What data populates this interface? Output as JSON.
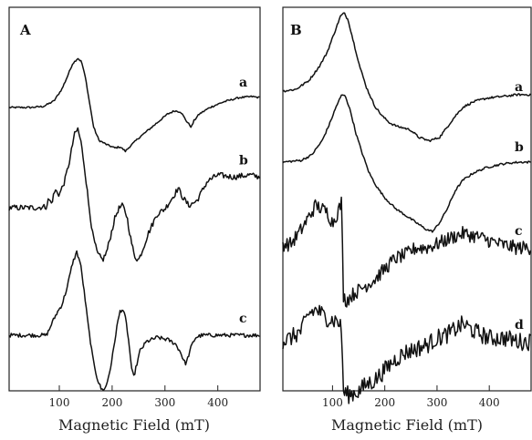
{
  "chart_data": [
    {
      "type": "line",
      "panel_label": "A",
      "xlabel": "Magnetic Field (mT)",
      "ylabel": "",
      "xlim": [
        5,
        480
      ],
      "xticks": [
        100,
        200,
        300,
        400
      ],
      "grid": false,
      "series": [
        {
          "name": "a",
          "label": "a",
          "noise": 0.4,
          "points": [
            [
              5,
              0
            ],
            [
              45,
              0
            ],
            [
              70,
              0.5
            ],
            [
              90,
              3
            ],
            [
              105,
              8.5
            ],
            [
              115,
              14
            ],
            [
              125,
              20
            ],
            [
              135,
              22.5
            ],
            [
              142,
              21
            ],
            [
              150,
              13
            ],
            [
              158,
              1
            ],
            [
              165,
              -9
            ],
            [
              175,
              -15
            ],
            [
              190,
              -17
            ],
            [
              205,
              -18.5
            ],
            [
              215,
              -18
            ],
            [
              225,
              -20
            ],
            [
              235,
              -17.5
            ],
            [
              250,
              -14
            ],
            [
              270,
              -10
            ],
            [
              290,
              -6
            ],
            [
              305,
              -3
            ],
            [
              318,
              -1.5
            ],
            [
              330,
              -2
            ],
            [
              340,
              -6
            ],
            [
              350,
              -9
            ],
            [
              355,
              -6
            ],
            [
              365,
              -3
            ],
            [
              385,
              0
            ],
            [
              410,
              2.5
            ],
            [
              440,
              4.5
            ],
            [
              465,
              5
            ],
            [
              480,
              4.5
            ]
          ]
        },
        {
          "name": "b",
          "label": "b",
          "noise": 1.3,
          "points": [
            [
              5,
              0
            ],
            [
              55,
              0
            ],
            [
              75,
              0.5
            ],
            [
              80,
              4
            ],
            [
              85,
              2
            ],
            [
              92,
              8
            ],
            [
              100,
              6
            ],
            [
              110,
              12
            ],
            [
              120,
              22
            ],
            [
              128,
              33
            ],
            [
              135,
              36
            ],
            [
              141,
              30
            ],
            [
              148,
              18
            ],
            [
              155,
              3
            ],
            [
              163,
              -12
            ],
            [
              172,
              -21
            ],
            [
              182,
              -24
            ],
            [
              190,
              -20
            ],
            [
              198,
              -12
            ],
            [
              205,
              -5
            ],
            [
              212,
              -0.5
            ],
            [
              220,
              1
            ],
            [
              228,
              -4
            ],
            [
              235,
              -14
            ],
            [
              242,
              -22
            ],
            [
              250,
              -24
            ],
            [
              258,
              -19
            ],
            [
              268,
              -12
            ],
            [
              285,
              -3
            ],
            [
              300,
              -0.5
            ],
            [
              318,
              6
            ],
            [
              325,
              9
            ],
            [
              333,
              5
            ],
            [
              345,
              1
            ],
            [
              360,
              3
            ],
            [
              380,
              12
            ],
            [
              400,
              15
            ],
            [
              430,
              14
            ],
            [
              460,
              15
            ],
            [
              480,
              14
            ]
          ]
        },
        {
          "name": "c",
          "label": "c",
          "noise": 0.9,
          "points": [
            [
              5,
              0
            ],
            [
              70,
              0
            ],
            [
              75,
              0
            ],
            [
              80,
              2
            ],
            [
              85,
              5
            ],
            [
              95,
              10
            ],
            [
              105,
              14
            ],
            [
              115,
              22
            ],
            [
              125,
              33
            ],
            [
              133,
              38
            ],
            [
              140,
              33
            ],
            [
              147,
              20
            ],
            [
              155,
              4
            ],
            [
              163,
              -10
            ],
            [
              172,
              -20
            ],
            [
              180,
              -25
            ],
            [
              188,
              -24
            ],
            [
              196,
              -16
            ],
            [
              203,
              -6
            ],
            [
              209,
              4
            ],
            [
              215,
              11
            ],
            [
              220,
              12
            ],
            [
              226,
              7
            ],
            [
              232,
              -4
            ],
            [
              237,
              -16
            ],
            [
              241,
              -19
            ],
            [
              246,
              -14
            ],
            [
              253,
              -7
            ],
            [
              265,
              -3
            ],
            [
              285,
              -1
            ],
            [
              305,
              -2
            ],
            [
              320,
              -4
            ],
            [
              330,
              -8
            ],
            [
              336,
              -12
            ],
            [
              340,
              -13
            ],
            [
              345,
              -9
            ],
            [
              350,
              -5
            ],
            [
              358,
              -1
            ],
            [
              370,
              0
            ],
            [
              420,
              0
            ],
            [
              480,
              0
            ]
          ]
        }
      ]
    },
    {
      "type": "line",
      "panel_label": "B",
      "xlabel": "Magnetic Field (mT)",
      "ylabel": "",
      "xlim": [
        5,
        480
      ],
      "xticks": [
        100,
        200,
        300,
        400
      ],
      "grid": false,
      "series": [
        {
          "name": "a",
          "label": "a",
          "noise": 0.3,
          "points": [
            [
              5,
              0
            ],
            [
              30,
              0.5
            ],
            [
              55,
              3
            ],
            [
              75,
              7
            ],
            [
              90,
              11
            ],
            [
              105,
              17
            ],
            [
              115,
              21
            ],
            [
              122,
              22
            ],
            [
              130,
              20
            ],
            [
              140,
              14
            ],
            [
              152,
              7
            ],
            [
              165,
              1
            ],
            [
              180,
              -4
            ],
            [
              195,
              -7
            ],
            [
              210,
              -9
            ],
            [
              225,
              -10
            ],
            [
              240,
              -10.5
            ],
            [
              250,
              -11
            ],
            [
              265,
              -13
            ],
            [
              285,
              -14
            ],
            [
              305,
              -13
            ],
            [
              320,
              -10
            ],
            [
              335,
              -7
            ],
            [
              350,
              -4.5
            ],
            [
              370,
              -3
            ],
            [
              395,
              -2
            ],
            [
              425,
              -1.5
            ],
            [
              455,
              -1
            ],
            [
              480,
              -1
            ]
          ]
        },
        {
          "name": "b",
          "label": "b",
          "noise": 0.3,
          "points": [
            [
              5,
              0
            ],
            [
              40,
              0.5
            ],
            [
              60,
              2
            ],
            [
              80,
              6
            ],
            [
              95,
              11
            ],
            [
              108,
              16
            ],
            [
              118,
              19
            ],
            [
              125,
              18.5
            ],
            [
              135,
              14
            ],
            [
              145,
              8
            ],
            [
              158,
              2
            ],
            [
              170,
              -3
            ],
            [
              185,
              -7
            ],
            [
              200,
              -10
            ],
            [
              220,
              -13
            ],
            [
              240,
              -15
            ],
            [
              260,
              -17
            ],
            [
              280,
              -19
            ],
            [
              292,
              -19.5
            ],
            [
              305,
              -17
            ],
            [
              320,
              -13
            ],
            [
              335,
              -8
            ],
            [
              350,
              -5
            ],
            [
              370,
              -3
            ],
            [
              395,
              -1.5
            ],
            [
              425,
              -0.5
            ],
            [
              455,
              0
            ],
            [
              480,
              0
            ]
          ]
        },
        {
          "name": "c",
          "label": "c",
          "noise": 2.0,
          "points": [
            [
              5,
              0
            ],
            [
              20,
              0
            ],
            [
              40,
              4
            ],
            [
              60,
              9
            ],
            [
              68,
              11
            ],
            [
              78,
              10
            ],
            [
              90,
              9
            ],
            [
              100,
              6
            ],
            [
              110,
              9
            ],
            [
              118,
              12
            ],
            [
              120,
              -14
            ],
            [
              125,
              -16
            ],
            [
              140,
              -14
            ],
            [
              160,
              -12
            ],
            [
              180,
              -10
            ],
            [
              200,
              -7
            ],
            [
              220,
              -4
            ],
            [
              240,
              -3
            ],
            [
              260,
              -1
            ],
            [
              280,
              -1
            ],
            [
              300,
              0
            ],
            [
              330,
              2
            ],
            [
              350,
              3
            ],
            [
              380,
              2
            ],
            [
              420,
              0
            ],
            [
              450,
              -1
            ],
            [
              480,
              -1
            ]
          ]
        },
        {
          "name": "d",
          "label": "d",
          "noise": 2.5,
          "points": [
            [
              5,
              0
            ],
            [
              20,
              1
            ],
            [
              40,
              3
            ],
            [
              55,
              8
            ],
            [
              70,
              9
            ],
            [
              85,
              7
            ],
            [
              100,
              6
            ],
            [
              110,
              6
            ],
            [
              118,
              3
            ],
            [
              120,
              -14
            ],
            [
              130,
              -15
            ],
            [
              150,
              -14
            ],
            [
              165,
              -12
            ],
            [
              180,
              -11
            ],
            [
              200,
              -8
            ],
            [
              220,
              -5
            ],
            [
              240,
              -3
            ],
            [
              260,
              -2
            ],
            [
              280,
              -1
            ],
            [
              300,
              1
            ],
            [
              320,
              2
            ],
            [
              340,
              4
            ],
            [
              350,
              5
            ],
            [
              370,
              3
            ],
            [
              400,
              1
            ],
            [
              430,
              1
            ],
            [
              460,
              0
            ],
            [
              480,
              0
            ]
          ]
        }
      ]
    }
  ]
}
